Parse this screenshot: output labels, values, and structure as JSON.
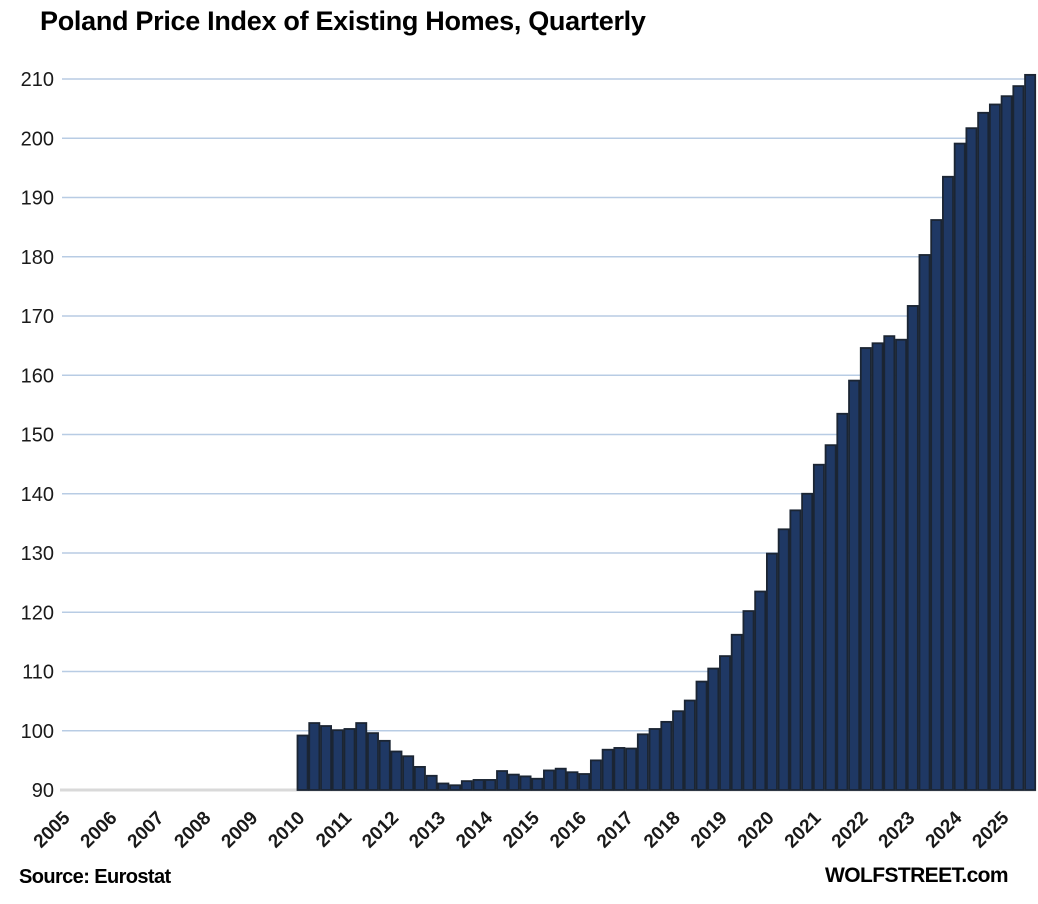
{
  "title": "Poland Price Index of Existing Homes, Quarterly",
  "footer": {
    "source": "Source: Eurostat",
    "branding": "WOLFSTREET.com"
  },
  "colors": {
    "bar_fill": "#1F3864",
    "bar_border": "#1B2533",
    "gridline": "#B8CCE4",
    "baseline": "#D9D9D9",
    "label_text": "#1A1A1A"
  },
  "chart_data": {
    "type": "bar",
    "title": "Poland Price Index of Existing Homes, Quarterly",
    "xlabel": "",
    "ylabel": "",
    "ylim": [
      90,
      212
    ],
    "y_ticks": [
      90,
      100,
      110,
      120,
      130,
      140,
      150,
      160,
      170,
      180,
      190,
      200,
      210
    ],
    "x_year_labels": [
      2005,
      2006,
      2007,
      2008,
      2009,
      2010,
      2011,
      2012,
      2013,
      2014,
      2015,
      2016,
      2017,
      2018,
      2019,
      2020,
      2021,
      2022,
      2023,
      2024,
      2025
    ],
    "x_axis_start_year": 2005,
    "data_start_period": "2010-Q1",
    "data_end_period": "2025-Q3",
    "legend": "none",
    "grid": "horizontal",
    "series": [
      {
        "name": "Price Index of Existing Homes",
        "points": [
          {
            "period": "2010-Q1",
            "value": 99.2
          },
          {
            "period": "2010-Q2",
            "value": 101.3
          },
          {
            "period": "2010-Q3",
            "value": 100.8
          },
          {
            "period": "2010-Q4",
            "value": 100.1
          },
          {
            "period": "2011-Q1",
            "value": 100.3
          },
          {
            "period": "2011-Q2",
            "value": 101.3
          },
          {
            "period": "2011-Q3",
            "value": 99.6
          },
          {
            "period": "2011-Q4",
            "value": 98.3
          },
          {
            "period": "2012-Q1",
            "value": 96.5
          },
          {
            "period": "2012-Q2",
            "value": 95.7
          },
          {
            "period": "2012-Q3",
            "value": 93.9
          },
          {
            "period": "2012-Q4",
            "value": 92.4
          },
          {
            "period": "2013-Q1",
            "value": 91.1
          },
          {
            "period": "2013-Q2",
            "value": 90.8
          },
          {
            "period": "2013-Q3",
            "value": 91.5
          },
          {
            "period": "2013-Q4",
            "value": 91.7
          },
          {
            "period": "2014-Q1",
            "value": 91.7
          },
          {
            "period": "2014-Q2",
            "value": 93.2
          },
          {
            "period": "2014-Q3",
            "value": 92.6
          },
          {
            "period": "2014-Q4",
            "value": 92.3
          },
          {
            "period": "2015-Q1",
            "value": 91.9
          },
          {
            "period": "2015-Q2",
            "value": 93.3
          },
          {
            "period": "2015-Q3",
            "value": 93.6
          },
          {
            "period": "2015-Q4",
            "value": 93.0
          },
          {
            "period": "2016-Q1",
            "value": 92.7
          },
          {
            "period": "2016-Q2",
            "value": 95.0
          },
          {
            "period": "2016-Q3",
            "value": 96.8
          },
          {
            "period": "2016-Q4",
            "value": 97.1
          },
          {
            "period": "2017-Q1",
            "value": 97.0
          },
          {
            "period": "2017-Q2",
            "value": 99.4
          },
          {
            "period": "2017-Q3",
            "value": 100.3
          },
          {
            "period": "2017-Q4",
            "value": 101.5
          },
          {
            "period": "2018-Q1",
            "value": 103.3
          },
          {
            "period": "2018-Q2",
            "value": 105.1
          },
          {
            "period": "2018-Q3",
            "value": 108.3
          },
          {
            "period": "2018-Q4",
            "value": 110.5
          },
          {
            "period": "2019-Q1",
            "value": 112.6
          },
          {
            "period": "2019-Q2",
            "value": 116.2
          },
          {
            "period": "2019-Q3",
            "value": 120.2
          },
          {
            "period": "2019-Q4",
            "value": 123.5
          },
          {
            "period": "2020-Q1",
            "value": 129.9
          },
          {
            "period": "2020-Q2",
            "value": 134.0
          },
          {
            "period": "2020-Q3",
            "value": 137.2
          },
          {
            "period": "2020-Q4",
            "value": 140.0
          },
          {
            "period": "2021-Q1",
            "value": 144.9
          },
          {
            "period": "2021-Q2",
            "value": 148.2
          },
          {
            "period": "2021-Q3",
            "value": 153.5
          },
          {
            "period": "2021-Q4",
            "value": 159.1
          },
          {
            "period": "2022-Q1",
            "value": 164.6
          },
          {
            "period": "2022-Q2",
            "value": 165.4
          },
          {
            "period": "2022-Q3",
            "value": 166.6
          },
          {
            "period": "2022-Q4",
            "value": 166.0
          },
          {
            "period": "2023-Q1",
            "value": 171.7
          },
          {
            "period": "2023-Q2",
            "value": 180.3
          },
          {
            "period": "2023-Q3",
            "value": 186.2
          },
          {
            "period": "2023-Q4",
            "value": 193.5
          },
          {
            "period": "2024-Q1",
            "value": 199.1
          },
          {
            "period": "2024-Q2",
            "value": 201.7
          },
          {
            "period": "2024-Q3",
            "value": 204.3
          },
          {
            "period": "2024-Q4",
            "value": 205.7
          },
          {
            "period": "2025-Q1",
            "value": 207.1
          },
          {
            "period": "2025-Q2",
            "value": 208.8
          },
          {
            "period": "2025-Q3",
            "value": 210.7
          }
        ]
      }
    ]
  }
}
